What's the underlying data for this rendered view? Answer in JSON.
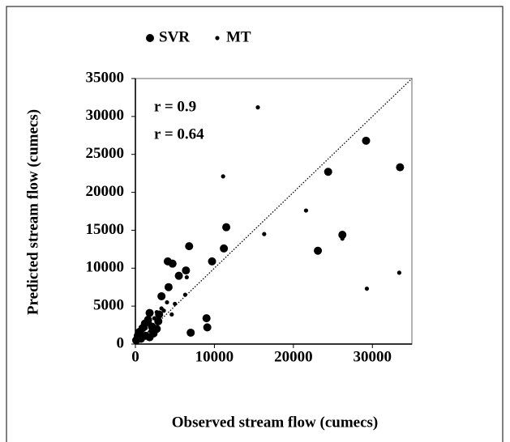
{
  "chart_data": {
    "type": "scatter",
    "x_label": "Observed stream flow (cumecs)",
    "y_label": "Predicted stream flow (cumecs)",
    "annotations": [
      "r = 0.9",
      "r = 0.64"
    ],
    "xlim": [
      0,
      35000
    ],
    "ylim": [
      0,
      35000
    ],
    "xticks": [
      0,
      10000,
      20000,
      30000
    ],
    "yticks": [
      0,
      5000,
      10000,
      15000,
      20000,
      25000,
      30000,
      35000
    ],
    "identity_line": true,
    "series": [
      {
        "name": "SVR",
        "color": "#000000",
        "x": [
          29200,
          33500,
          24400,
          26200,
          23100,
          11500,
          11200,
          9700,
          6800,
          6400,
          4100,
          4700,
          5500,
          4200,
          3300,
          7000,
          9000,
          9100,
          1800,
          3000,
          1600,
          2900,
          1200,
          900,
          500,
          300,
          100,
          2300,
          1800,
          2700,
          1300,
          700,
          2100
        ],
        "values": [
          26800,
          23300,
          22700,
          14400,
          12300,
          15400,
          12600,
          10900,
          12900,
          9700,
          10900,
          10600,
          9000,
          7500,
          6300,
          1500,
          3400,
          2200,
          4100,
          3900,
          3200,
          3000,
          2700,
          2100,
          1600,
          1100,
          500,
          1400,
          900,
          2000,
          1100,
          700,
          2300
        ]
      },
      {
        "name": "MT",
        "color": "#000000",
        "x": [
          15500,
          11100,
          21600,
          16300,
          26200,
          29300,
          33400,
          6500,
          6300,
          5000,
          4000,
          3300,
          2700,
          2400,
          1800,
          1300,
          800,
          400,
          1900,
          3600,
          4600
        ],
        "values": [
          31200,
          22100,
          17600,
          14500,
          13900,
          7300,
          9400,
          8800,
          6500,
          5300,
          5500,
          4700,
          4200,
          3400,
          2900,
          2100,
          1600,
          1000,
          1700,
          4400,
          3900
        ]
      }
    ]
  }
}
